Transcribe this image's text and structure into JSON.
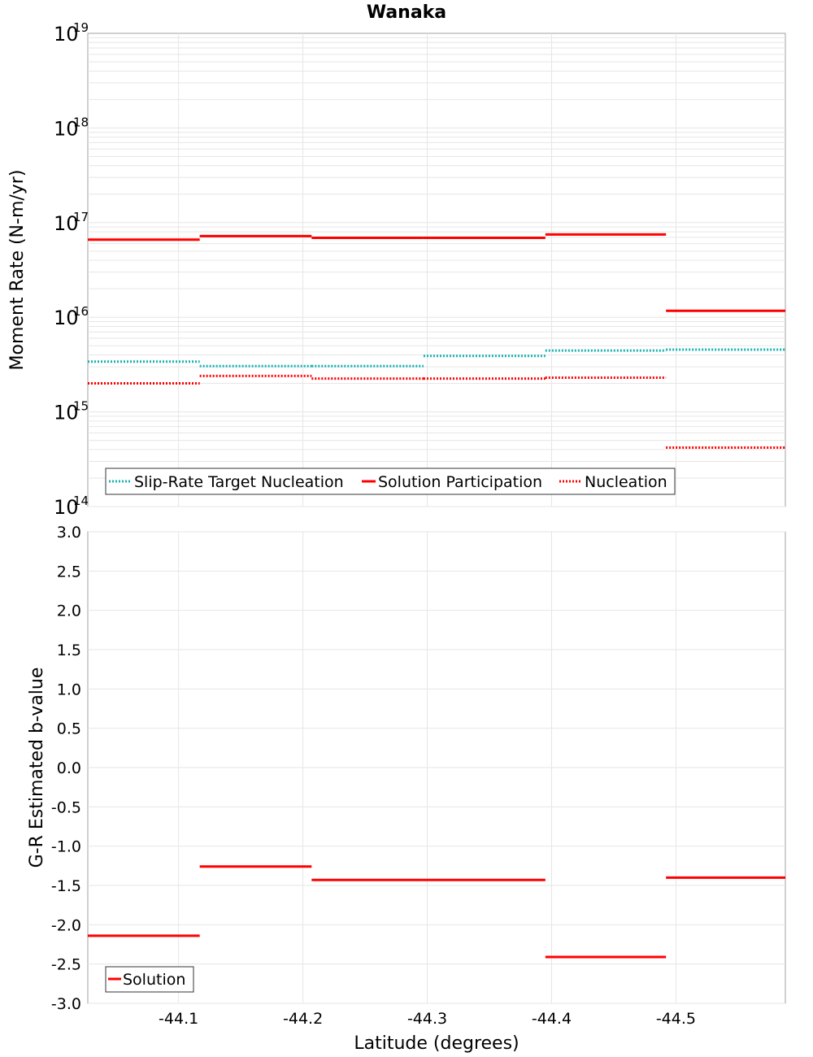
{
  "title": "Wanaka",
  "xlabel": "Latitude (degrees)",
  "colors": {
    "red": "#ff0000",
    "teal": "#19b2b2",
    "grid": "#e6e6e6",
    "frame": "#a0a0a0"
  },
  "chart_data": [
    {
      "type": "line",
      "ylabel": "Moment Rate (N-m/yr)",
      "yscale": "log",
      "ylim": [
        100000000000000.0,
        1e+19
      ],
      "y_tick_exponents": [
        "14",
        "15",
        "16",
        "17",
        "18",
        "19"
      ],
      "y_tick_base": "10",
      "xlim": [
        -44.027,
        -44.588
      ],
      "grid": true,
      "legend_position": "bottom-left",
      "series": [
        {
          "name": "Slip-Rate Target Nucleation",
          "style": "dotted",
          "color": "#19b2b2",
          "segments": [
            {
              "x": [
                -44.027,
                -44.117
              ],
              "y": 3400000000000000.0
            },
            {
              "x": [
                -44.117,
                -44.207
              ],
              "y": 3050000000000000.0
            },
            {
              "x": [
                -44.207,
                -44.297
              ],
              "y": 3050000000000000.0
            },
            {
              "x": [
                -44.297,
                -44.395
              ],
              "y": 3900000000000000.0
            },
            {
              "x": [
                -44.395,
                -44.492
              ],
              "y": 4450000000000000.0
            },
            {
              "x": [
                -44.492,
                -44.588
              ],
              "y": 4550000000000000.0
            }
          ]
        },
        {
          "name": "Solution Participation",
          "style": "solid",
          "color": "#ff0000",
          "segments": [
            {
              "x": [
                -44.027,
                -44.117
              ],
              "y": 6.6e+16
            },
            {
              "x": [
                -44.117,
                -44.207
              ],
              "y": 7.2e+16
            },
            {
              "x": [
                -44.207,
                -44.297
              ],
              "y": 6.9e+16
            },
            {
              "x": [
                -44.297,
                -44.395
              ],
              "y": 6.9e+16
            },
            {
              "x": [
                -44.395,
                -44.492
              ],
              "y": 7.5e+16
            },
            {
              "x": [
                -44.492,
                -44.588
              ],
              "y": 1.17e+16
            }
          ]
        },
        {
          "name": "Nucleation",
          "style": "dotted",
          "color": "#ff0000",
          "segments": [
            {
              "x": [
                -44.027,
                -44.117
              ],
              "y": 2000000000000000.0
            },
            {
              "x": [
                -44.117,
                -44.207
              ],
              "y": 2400000000000000.0
            },
            {
              "x": [
                -44.207,
                -44.297
              ],
              "y": 2250000000000000.0
            },
            {
              "x": [
                -44.297,
                -44.395
              ],
              "y": 2250000000000000.0
            },
            {
              "x": [
                -44.395,
                -44.492
              ],
              "y": 2300000000000000.0
            },
            {
              "x": [
                -44.492,
                -44.588
              ],
              "y": 420000000000000.0
            }
          ]
        }
      ]
    },
    {
      "type": "line",
      "ylabel": "G-R Estimated b-value",
      "ylim": [
        -3.0,
        3.0
      ],
      "y_ticks": [
        "3.0",
        "2.5",
        "2.0",
        "1.5",
        "1.0",
        "0.5",
        "0.0",
        "-0.5",
        "-1.0",
        "-1.5",
        "-2.0",
        "-2.5",
        "-3.0"
      ],
      "xlim": [
        -44.027,
        -44.588
      ],
      "x_ticks": [
        "-44.1",
        "-44.2",
        "-44.3",
        "-44.4",
        "-44.5"
      ],
      "grid": true,
      "legend_position": "bottom-left",
      "series": [
        {
          "name": "Solution",
          "style": "solid",
          "color": "#ff0000",
          "segments": [
            {
              "x": [
                -44.027,
                -44.117
              ],
              "y": -2.14
            },
            {
              "x": [
                -44.117,
                -44.207
              ],
              "y": -1.26
            },
            {
              "x": [
                -44.207,
                -44.297
              ],
              "y": -1.43
            },
            {
              "x": [
                -44.297,
                -44.395
              ],
              "y": -1.43
            },
            {
              "x": [
                -44.395,
                -44.492
              ],
              "y": -2.41
            },
            {
              "x": [
                -44.492,
                -44.588
              ],
              "y": -1.4
            }
          ]
        }
      ]
    }
  ]
}
